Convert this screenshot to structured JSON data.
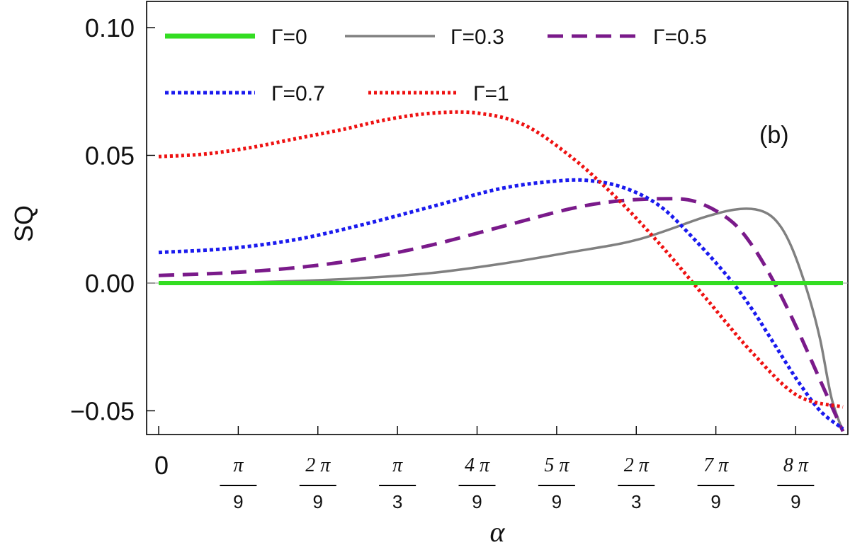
{
  "chart_data": {
    "type": "line",
    "panel_label": "(b)",
    "xlabel": "α",
    "ylabel": "SQ",
    "xlim": [
      0,
      3.05
    ],
    "ylim": [
      -0.06,
      0.11
    ],
    "grid": false,
    "legend_position": "top-left, two rows",
    "y_ticks": [
      {
        "value": 0.1,
        "label": "0.10"
      },
      {
        "value": 0.05,
        "label": "0.05"
      },
      {
        "value": 0.0,
        "label": "0.00"
      },
      {
        "value": -0.05,
        "label": "−0.05"
      }
    ],
    "x_ticks": [
      {
        "value": 0,
        "label": "0",
        "num": "",
        "den": ""
      },
      {
        "value": 0.349,
        "label": "π/9",
        "num": "π",
        "den": "9"
      },
      {
        "value": 0.698,
        "label": "2π/9",
        "num": "2 π",
        "den": "9"
      },
      {
        "value": 1.047,
        "label": "π/3",
        "num": "π",
        "den": "3"
      },
      {
        "value": 1.396,
        "label": "4π/9",
        "num": "4 π",
        "den": "9"
      },
      {
        "value": 1.745,
        "label": "5π/9",
        "num": "5 π",
        "den": "9"
      },
      {
        "value": 2.094,
        "label": "2π/3",
        "num": "2 π",
        "den": "3"
      },
      {
        "value": 2.443,
        "label": "7π/9",
        "num": "7 π",
        "den": "9"
      },
      {
        "value": 2.793,
        "label": "8π/9",
        "num": "8 π",
        "den": "9"
      }
    ],
    "series": [
      {
        "name": "Γ=0",
        "color": "#33dd22",
        "dash": "solid",
        "x": [
          0.0,
          3.0
        ],
        "y": [
          0.0,
          0.0
        ]
      },
      {
        "name": "Γ=0.3",
        "color": "#808080",
        "dash": "solid",
        "x": [
          0.0,
          0.3,
          0.6,
          0.9,
          1.2,
          1.5,
          1.8,
          2.1,
          2.4,
          2.55,
          2.65,
          2.72,
          2.78,
          2.85,
          2.9,
          2.95,
          3.0
        ],
        "y": [
          0.0,
          0.0002,
          0.0008,
          0.002,
          0.004,
          0.0075,
          0.012,
          0.017,
          0.026,
          0.029,
          0.028,
          0.023,
          0.013,
          -0.005,
          -0.022,
          -0.045,
          -0.058
        ]
      },
      {
        "name": "Γ=0.5",
        "color": "#7a1a8a",
        "dash": "dashed",
        "x": [
          0.0,
          0.3,
          0.6,
          0.9,
          1.2,
          1.5,
          1.8,
          2.0,
          2.2,
          2.35,
          2.5,
          2.6,
          2.7,
          2.8,
          2.9,
          3.0
        ],
        "y": [
          0.003,
          0.004,
          0.006,
          0.0095,
          0.015,
          0.022,
          0.029,
          0.032,
          0.033,
          0.032,
          0.025,
          0.015,
          0.0,
          -0.018,
          -0.038,
          -0.058
        ]
      },
      {
        "name": "Γ=0.7",
        "color": "#1a1aee",
        "dash": "dotted-fine",
        "x": [
          0.0,
          0.3,
          0.6,
          0.9,
          1.2,
          1.5,
          1.75,
          1.9,
          2.05,
          2.2,
          2.35,
          2.5,
          2.6,
          2.7,
          2.8,
          2.9,
          3.0
        ],
        "y": [
          0.012,
          0.0135,
          0.017,
          0.023,
          0.03,
          0.037,
          0.04,
          0.04,
          0.037,
          0.03,
          0.017,
          0.002,
          -0.01,
          -0.024,
          -0.038,
          -0.05,
          -0.057
        ]
      },
      {
        "name": "Γ=1",
        "color": "#ee1111",
        "dash": "dotted",
        "x": [
          0.0,
          0.2,
          0.4,
          0.6,
          0.8,
          1.0,
          1.2,
          1.4,
          1.6,
          1.8,
          2.0,
          2.2,
          2.4,
          2.6,
          2.8,
          3.0
        ],
        "y": [
          0.0495,
          0.0505,
          0.053,
          0.0565,
          0.06,
          0.064,
          0.0665,
          0.0665,
          0.062,
          0.05,
          0.034,
          0.015,
          -0.006,
          -0.027,
          -0.044,
          -0.0485
        ]
      }
    ]
  }
}
